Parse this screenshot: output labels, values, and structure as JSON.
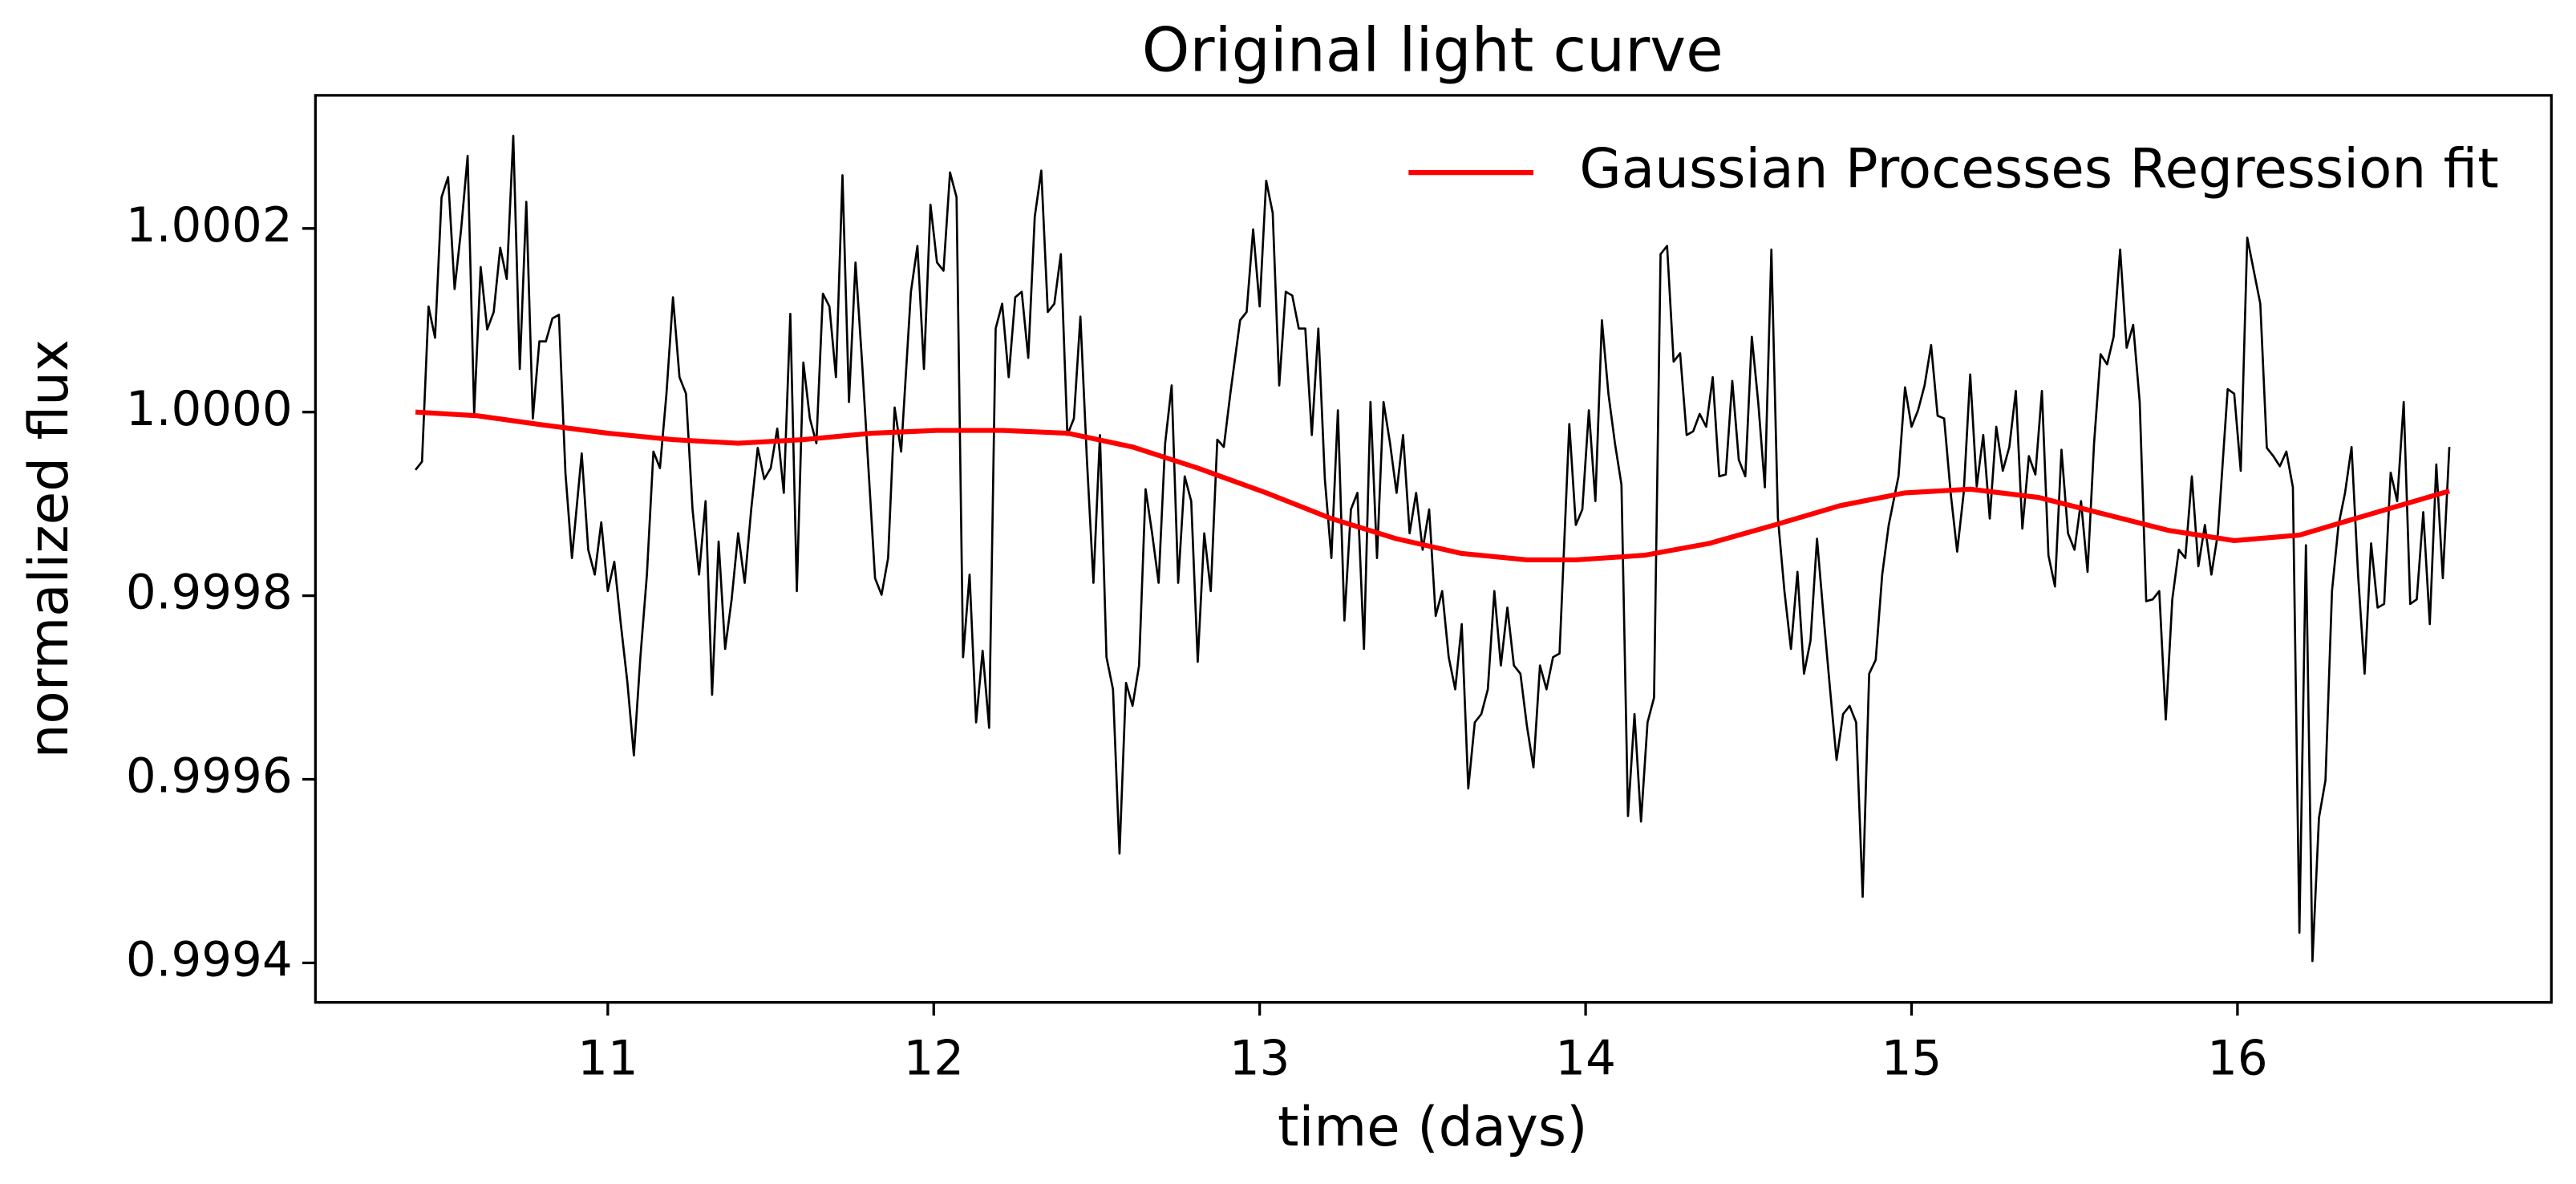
{
  "chart_data": {
    "type": "line",
    "title": "Original light curve",
    "x_label": "time (days)",
    "y_label": "normalized flux",
    "xlim": [
      10.103,
      16.963
    ],
    "ylim": [
      0.999357,
      1.000345
    ],
    "xticks": [
      11,
      12,
      13,
      14,
      15,
      16
    ],
    "yticks": [
      0.9994,
      0.9996,
      0.9998,
      {
        "value": 1,
        "label": "1.0000"
      },
      1.0002
    ],
    "grid": false,
    "legend": "upper right",
    "series": [
      {
        "color": "#000000",
        "x": [
          10.41,
          10.43,
          10.45,
          10.47,
          10.49,
          10.51,
          10.53,
          10.55,
          10.57,
          10.59,
          10.61,
          10.63,
          10.65,
          10.67,
          10.69,
          10.71,
          10.73,
          10.75,
          10.77,
          10.79,
          10.81,
          10.83,
          10.85,
          10.87,
          10.89,
          10.92,
          10.94,
          10.96,
          10.98,
          11,
          11.02,
          11.04,
          11.06,
          11.08,
          11.1,
          11.12,
          11.14,
          11.16,
          11.18,
          11.2,
          11.22,
          11.24,
          11.26,
          11.28,
          11.3,
          11.32,
          11.34,
          11.36,
          11.38,
          11.4,
          11.42,
          11.44,
          11.46,
          11.48,
          11.5,
          11.52,
          11.54,
          11.56,
          11.58,
          11.6,
          11.62,
          11.64,
          11.66,
          11.68,
          11.7,
          11.72,
          11.74,
          11.76,
          11.78,
          11.8,
          11.82,
          11.84,
          11.86,
          11.88,
          11.9,
          11.93,
          11.95,
          11.97,
          11.99,
          12.01,
          12.03,
          12.05,
          12.07,
          12.09,
          12.11,
          12.13,
          12.15,
          12.17,
          12.19,
          12.21,
          12.23,
          12.25,
          12.27,
          12.29,
          12.31,
          12.33,
          12.35,
          12.37,
          12.39,
          12.41,
          12.43,
          12.45,
          12.47,
          12.49,
          12.51,
          12.53,
          12.55,
          12.57,
          12.59,
          12.61,
          12.63,
          12.65,
          12.67,
          12.69,
          12.71,
          12.73,
          12.75,
          12.77,
          12.79,
          12.81,
          12.83,
          12.85,
          12.87,
          12.89,
          12.91,
          12.94,
          12.96,
          12.98,
          13,
          13.02,
          13.04,
          13.06,
          13.08,
          13.1,
          13.12,
          13.14,
          13.16,
          13.18,
          13.2,
          13.22,
          13.24,
          13.26,
          13.28,
          13.3,
          13.32,
          13.34,
          13.36,
          13.38,
          13.4,
          13.42,
          13.44,
          13.46,
          13.48,
          13.5,
          13.52,
          13.54,
          13.56,
          13.58,
          13.6,
          13.62,
          13.64,
          13.66,
          13.68,
          13.7,
          13.72,
          13.74,
          13.76,
          13.78,
          13.8,
          13.82,
          13.84,
          13.86,
          13.88,
          13.9,
          13.92,
          13.95,
          13.97,
          13.99,
          14.01,
          14.03,
          14.05,
          14.07,
          14.09,
          14.11,
          14.13,
          14.15,
          14.17,
          14.19,
          14.21,
          14.23,
          14.25,
          14.27,
          14.29,
          14.31,
          14.33,
          14.35,
          14.37,
          14.39,
          14.41,
          14.43,
          14.45,
          14.47,
          14.49,
          14.51,
          14.53,
          14.55,
          14.57,
          14.59,
          14.61,
          14.63,
          14.65,
          14.67,
          14.69,
          14.71,
          14.73,
          14.75,
          14.77,
          14.79,
          14.81,
          14.83,
          14.85,
          14.87,
          14.89,
          14.91,
          14.93,
          14.96,
          14.98,
          15,
          15.02,
          15.04,
          15.06,
          15.08,
          15.1,
          15.12,
          15.14,
          15.16,
          15.18,
          15.2,
          15.22,
          15.24,
          15.26,
          15.28,
          15.3,
          15.32,
          15.34,
          15.36,
          15.38,
          15.4,
          15.42,
          15.44,
          15.46,
          15.48,
          15.5,
          15.52,
          15.54,
          15.56,
          15.58,
          15.6,
          15.62,
          15.64,
          15.66,
          15.68,
          15.7,
          15.72,
          15.74,
          15.76,
          15.78,
          15.8,
          15.82,
          15.84,
          15.86,
          15.88,
          15.9,
          15.92,
          15.94,
          15.97,
          15.99,
          16.01,
          16.03,
          16.05,
          16.07,
          16.09,
          16.11,
          16.13,
          16.15,
          16.17,
          16.19,
          16.21,
          16.23,
          16.25,
          16.27,
          16.29,
          16.31,
          16.33,
          16.35,
          16.37,
          16.39,
          16.41,
          16.43,
          16.45,
          16.47,
          16.49,
          16.51,
          16.53,
          16.55,
          16.57,
          16.59,
          16.61,
          16.63,
          16.65
        ],
        "values": [
          0.999937,
          0.999946,
          1.000115,
          1.000081,
          1.000234,
          1.000256,
          1.000134,
          1.000199,
          1.000279,
          0.999998,
          1.000158,
          1.00009,
          1.000109,
          1.000179,
          1.000145,
          1.000301,
          1.000047,
          1.000229,
          0.999993,
          1.000077,
          1.000077,
          1.000102,
          1.000106,
          0.999934,
          0.999841,
          0.999955,
          0.99985,
          0.999823,
          0.99988,
          0.999805,
          0.999837,
          0.999769,
          0.999706,
          0.999626,
          0.999733,
          0.999823,
          0.999957,
          0.999939,
          1.00002,
          1.000125,
          1.000038,
          1.00002,
          0.999894,
          0.999823,
          0.999903,
          0.999692,
          0.999859,
          0.999742,
          0.999796,
          0.999868,
          0.999814,
          0.999894,
          0.999961,
          0.999927,
          0.999939,
          0.999982,
          0.999912,
          1.000107,
          0.999805,
          1.000054,
          0.999993,
          0.999966,
          1.000129,
          1.000115,
          1.000038,
          1.000258,
          1.000011,
          1.000163,
          1.000055,
          0.999937,
          0.999819,
          0.999801,
          0.999841,
          1.000005,
          0.999957,
          1.000131,
          1.000181,
          1.000047,
          1.000226,
          1.000163,
          1.000154,
          1.000261,
          1.000234,
          0.999733,
          0.999823,
          0.999662,
          0.99974,
          0.999656,
          1.000091,
          1.000118,
          1.000038,
          1.000125,
          1.000131,
          1.000059,
          1.000213,
          1.000263,
          1.000109,
          1.000118,
          1.000172,
          0.999975,
          0.999993,
          1.000104,
          0.999948,
          0.999814,
          0.999975,
          0.999733,
          0.999698,
          0.999519,
          0.999705,
          0.99968,
          0.999724,
          0.999916,
          0.999868,
          0.999814,
          0.999966,
          1.000029,
          0.999814,
          0.99993,
          0.999903,
          0.999728,
          0.999868,
          0.999805,
          0.99997,
          0.999962,
          1.00002,
          1.0001,
          1.000109,
          1.000199,
          1.000115,
          1.000252,
          1.000217,
          1.000029,
          1.000131,
          1.000127,
          1.000091,
          1.000091,
          0.999975,
          1.000091,
          0.999927,
          0.999841,
          1.000002,
          0.999773,
          0.999894,
          0.999912,
          0.999742,
          1.000011,
          0.999841,
          1.000011,
          0.999966,
          0.999912,
          0.999975,
          0.999868,
          0.999912,
          0.99985,
          0.999894,
          0.999778,
          0.999805,
          0.999733,
          0.999698,
          0.999769,
          0.99959,
          0.999662,
          0.999671,
          0.999698,
          0.999805,
          0.999724,
          0.999787,
          0.999724,
          0.999715,
          0.999658,
          0.999613,
          0.999724,
          0.999698,
          0.999733,
          0.999737,
          0.999987,
          0.999877,
          0.999894,
          1.000002,
          0.999903,
          1.0001,
          1.00002,
          0.999966,
          0.999921,
          0.99956,
          0.999671,
          0.999554,
          0.999662,
          0.999689,
          1.000172,
          1.000181,
          1.000055,
          1.000064,
          0.999975,
          0.999979,
          0.999998,
          0.999984,
          1.000038,
          0.99993,
          0.999932,
          1.000034,
          0.999948,
          0.99993,
          1.000082,
          1.000009,
          0.999918,
          1.000177,
          0.999885,
          0.999805,
          0.999742,
          0.999826,
          0.999715,
          0.999751,
          0.999862,
          0.999778,
          0.999698,
          0.999621,
          0.999671,
          0.99968,
          0.999662,
          0.999472,
          0.999715,
          0.99973,
          0.999823,
          0.999877,
          0.99993,
          1.000027,
          0.999984,
          1.000002,
          1.000029,
          1.000073,
          0.999996,
          0.999993,
          0.999912,
          0.999848,
          0.999912,
          1.000041,
          0.999919,
          0.999975,
          0.999884,
          0.999984,
          0.999936,
          0.999962,
          1.000023,
          0.999873,
          0.999952,
          0.999932,
          1.000023,
          0.999844,
          0.99981,
          0.999959,
          0.999868,
          0.99985,
          0.999903,
          0.999826,
          0.999966,
          1.000063,
          1.000052,
          1.000082,
          1.000177,
          1.00007,
          1.000095,
          1.000011,
          0.999794,
          0.999796,
          0.999805,
          0.999665,
          0.999796,
          0.99985,
          0.999841,
          0.99993,
          0.999832,
          0.999877,
          0.999823,
          0.999868,
          1.000025,
          1.00002,
          0.999936,
          1.00019,
          1.000154,
          1.000118,
          0.999961,
          0.999952,
          0.999941,
          0.999957,
          0.999918,
          0.999433,
          0.999855,
          0.999402,
          0.999558,
          0.999599,
          0.999805,
          0.999877,
          0.999912,
          0.999962,
          0.999823,
          0.999715,
          0.999857,
          0.999787,
          0.999791,
          0.999934,
          0.999903,
          1.000011,
          0.999791,
          0.999796,
          0.999891,
          0.999769,
          0.999943,
          0.999819,
          0.999962
        ]
      },
      {
        "name": "Gaussian Processes Regression fit",
        "color": "#ff0000",
        "x": [
          10.41,
          10.6,
          10.8,
          11,
          11.2,
          11.4,
          11.6,
          11.81,
          12.01,
          12.21,
          12.41,
          12.61,
          12.81,
          13.02,
          13.22,
          13.42,
          13.62,
          13.82,
          13.97,
          14.18,
          14.38,
          14.58,
          14.78,
          14.98,
          15.18,
          15.39,
          15.59,
          15.79,
          15.99,
          16.19,
          16.39,
          16.65
        ],
        "values": [
          1,
          0.999996,
          0.999986,
          0.999977,
          0.99997,
          0.999966,
          0.99997,
          0.999977,
          0.99998,
          0.99998,
          0.999977,
          0.999962,
          0.999939,
          0.999912,
          0.999884,
          0.999862,
          0.999846,
          0.999839,
          0.999839,
          0.999844,
          0.999857,
          0.999877,
          0.999898,
          0.999912,
          0.999916,
          0.999907,
          0.999889,
          0.999871,
          0.99986,
          0.999866,
          0.999887,
          0.999914
        ]
      }
    ]
  }
}
